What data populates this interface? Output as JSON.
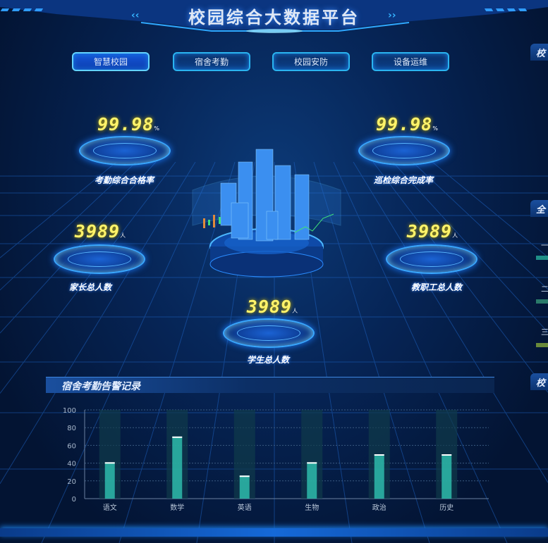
{
  "header": {
    "title": "校园综合大数据平台",
    "deco_left": "‹‹",
    "deco_right": "››"
  },
  "tabs": [
    {
      "label": "智慧校园",
      "active": true
    },
    {
      "label": "宿舍考勤",
      "active": false
    },
    {
      "label": "校园安防",
      "active": false
    },
    {
      "label": "设备运维",
      "active": false
    }
  ],
  "stats": [
    {
      "value": "99.98",
      "unit": "%",
      "label": "考勤综合合格率"
    },
    {
      "value": "99.98",
      "unit": "%",
      "label": "巡检综合完成率"
    },
    {
      "value": "3989",
      "unit": "人",
      "label": "家长总人数"
    },
    {
      "value": "3989",
      "unit": "人",
      "label": "教职工总人数"
    },
    {
      "value": "3989",
      "unit": "人",
      "label": "学生总人数"
    }
  ],
  "right_panels": {
    "panel1": "校",
    "panel2": "全",
    "rank1": "一",
    "rank2": "二",
    "rank3": "三",
    "panel3": "校",
    "rank_colors": [
      "#1f8f87",
      "#2a7a6a",
      "#6a8a3a"
    ]
  },
  "chart_panel": {
    "title": "宿舍考勤告警记录"
  },
  "chart_data": {
    "type": "bar",
    "title": "宿舍考勤告警记录",
    "categories": [
      "语文",
      "数学",
      "英语",
      "生物",
      "政治",
      "历史"
    ],
    "values": [
      41,
      70,
      26,
      41,
      50,
      50
    ],
    "ylim": [
      0,
      100
    ],
    "yticks": [
      0,
      20,
      40,
      60,
      80,
      100
    ],
    "grid": true,
    "bar_color": "#2fc4b2",
    "background_bar_color": "#0f3a4a"
  }
}
